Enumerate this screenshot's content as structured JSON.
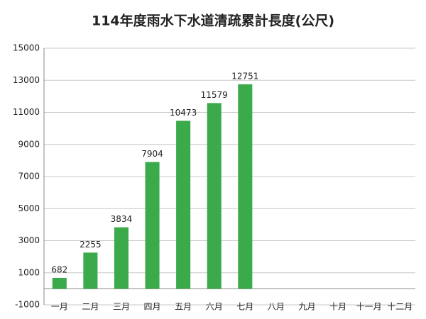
{
  "chart_data": {
    "type": "bar",
    "title": "114年度雨水下水道清疏累計長度(公尺)",
    "categories": [
      "一月",
      "二月",
      "三月",
      "四月",
      "五月",
      "六月",
      "七月",
      "八月",
      "九月",
      "十月",
      "十一月",
      "十二月"
    ],
    "values": [
      682,
      2255,
      3834,
      7904,
      10473,
      11579,
      12751,
      null,
      null,
      null,
      null,
      null
    ],
    "color": "#3aaa4a",
    "ylim": [
      -1000,
      15000
    ],
    "yticks": [
      -1000,
      1000,
      3000,
      5000,
      7000,
      9000,
      11000,
      13000,
      15000
    ],
    "grid": true
  }
}
